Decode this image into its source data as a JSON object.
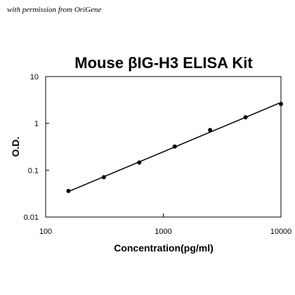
{
  "watermark": "with permission from OriGene",
  "chart_data": {
    "type": "scatter",
    "title": "Mouse βIG-H3 ELISA Kit",
    "xlabel": "Concentration(pg/ml)",
    "ylabel": "O.D.",
    "x_scale": "log",
    "y_scale": "log",
    "xlim": [
      100,
      10000
    ],
    "ylim": [
      0.01,
      10
    ],
    "x_ticks": [
      100,
      1000,
      10000
    ],
    "x_tick_labels": [
      "100",
      "1000",
      "10000"
    ],
    "y_ticks": [
      0.01,
      0.1,
      1,
      10
    ],
    "y_tick_labels": [
      "0.01",
      "0.1",
      "1",
      "10"
    ],
    "grid": false,
    "legend": "none",
    "series": [
      {
        "x": [
          156.25,
          312.5,
          625,
          1250,
          2500,
          5000,
          10000
        ],
        "y": [
          0.036,
          0.071,
          0.146,
          0.32,
          0.72,
          1.35,
          2.6
        ]
      }
    ],
    "fit_line": {
      "x": [
        156.25,
        10000
      ],
      "y": [
        0.035,
        2.8
      ]
    },
    "colors": {
      "points": "#000000",
      "line": "#000000"
    }
  }
}
